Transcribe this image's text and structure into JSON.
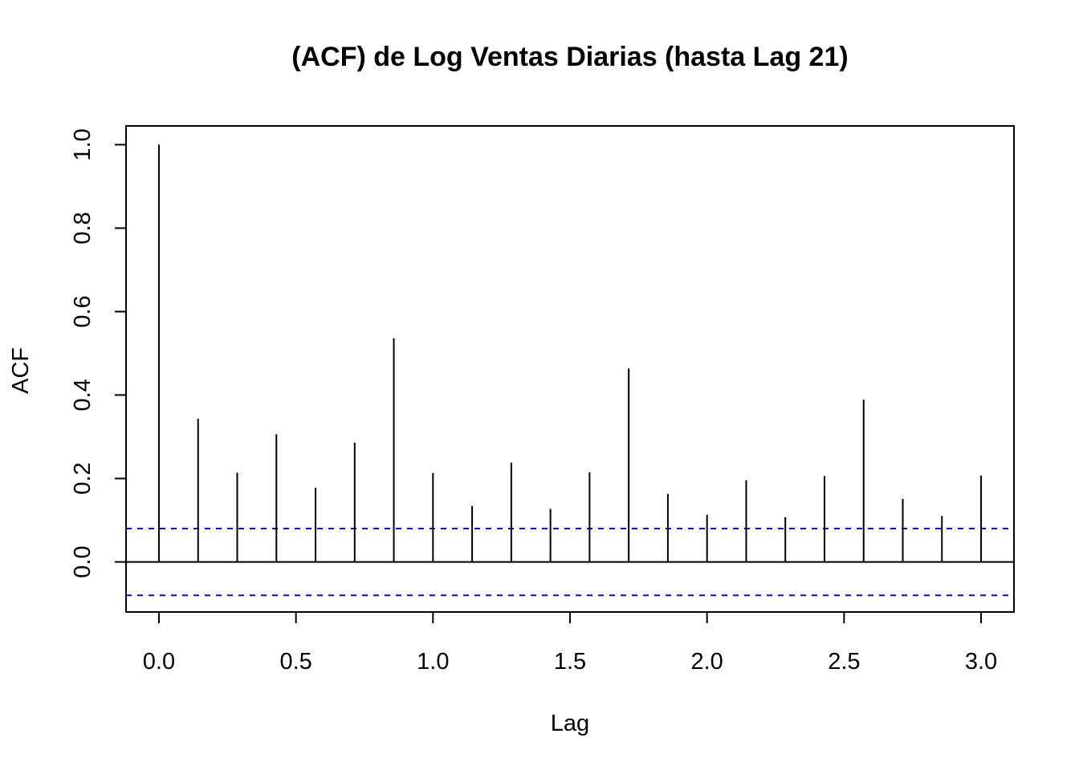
{
  "chart_data": {
    "type": "bar",
    "subtype": "acf-stem",
    "title": "(ACF) de Log Ventas Diarias (hasta Lag 21)",
    "xlabel": "Lag",
    "ylabel": "ACF",
    "xlim": [
      -0.12,
      3.12
    ],
    "ylim": [
      -0.12,
      1.045
    ],
    "x_ticks": [
      "0.0",
      "0.5",
      "1.0",
      "1.5",
      "2.0",
      "2.5",
      "3.0"
    ],
    "y_ticks": [
      "0.0",
      "0.2",
      "0.4",
      "0.6",
      "0.8",
      "1.0"
    ],
    "x": [
      0.0,
      0.1429,
      0.2857,
      0.4286,
      0.5714,
      0.7143,
      0.8571,
      1.0,
      1.1429,
      1.2857,
      1.4286,
      1.5714,
      1.7143,
      1.8571,
      2.0,
      2.1429,
      2.2857,
      2.4286,
      2.5714,
      2.7143,
      2.8571,
      3.0
    ],
    "values": [
      1.0,
      0.343,
      0.214,
      0.306,
      0.178,
      0.286,
      0.536,
      0.213,
      0.134,
      0.238,
      0.127,
      0.215,
      0.464,
      0.163,
      0.113,
      0.196,
      0.107,
      0.206,
      0.389,
      0.151,
      0.11,
      0.207
    ],
    "confidence_bounds": [
      0.08,
      -0.08
    ],
    "colors": {
      "stem": "#000000",
      "confidence": "#0000FF",
      "zero_line": "#000000",
      "frame": "#000000"
    },
    "grid": false,
    "legend": "none"
  }
}
